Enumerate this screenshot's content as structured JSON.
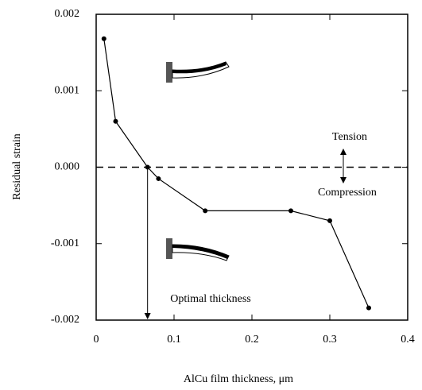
{
  "chart_data": {
    "type": "line",
    "xlabel": "AlCu film thickness, μm",
    "ylabel": "Residual strain",
    "x": [
      0.01,
      0.025,
      0.066,
      0.08,
      0.14,
      0.25,
      0.3,
      0.35
    ],
    "series": [
      {
        "color": "#000000",
        "values": [
          0.00168,
          0.0006,
          0,
          -0.00015,
          -0.00057,
          -0.00057,
          -0.0007,
          -0.00184
        ]
      }
    ],
    "xlim": [
      0,
      0.4
    ],
    "xticks": [
      0,
      0.1,
      0.2,
      0.3,
      0.4
    ],
    "ylim": [
      -0.002,
      0.002
    ],
    "yticks": [
      -0.002,
      -0.001,
      {
        "value": 0,
        "label": "0.000"
      },
      0.001,
      0.002
    ],
    "reference_line": 0,
    "annotations": {
      "upper": "Tension",
      "lower": "Compression",
      "arrow": "Optimal thickness"
    }
  }
}
